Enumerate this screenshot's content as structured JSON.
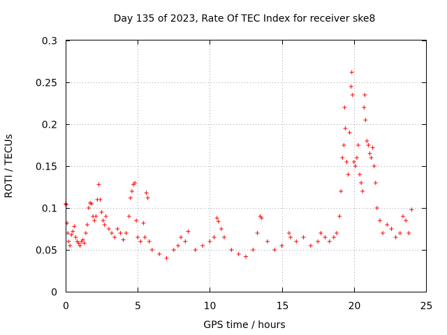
{
  "chart_data": {
    "type": "scatter",
    "title": "Day 135 of 2023, Rate Of TEC Index for receiver ske8",
    "xlabel": "GPS time / hours",
    "ylabel": "ROTI / TECUs",
    "xlim": [
      0,
      25
    ],
    "ylim": [
      0,
      0.3
    ],
    "xticks": [
      0,
      5,
      10,
      15,
      20,
      25
    ],
    "xtick_labels": [
      "0",
      "5",
      "10",
      "15",
      "20",
      "25"
    ],
    "yticks": [
      0,
      0.05,
      0.1,
      0.15,
      0.2,
      0.25,
      0.3
    ],
    "ytick_labels": [
      "0",
      "0.05",
      "0.1",
      "0.15",
      "0.2",
      "0.25",
      "0.3"
    ],
    "grid": true,
    "marker": "+",
    "color": "#ff0000",
    "series": [
      {
        "name": "ROTI",
        "points": [
          [
            0.0,
            0.105
          ],
          [
            0.05,
            0.104
          ],
          [
            0.1,
            0.082
          ],
          [
            0.15,
            0.07
          ],
          [
            0.2,
            0.06
          ],
          [
            0.3,
            0.055
          ],
          [
            0.4,
            0.068
          ],
          [
            0.5,
            0.072
          ],
          [
            0.6,
            0.078
          ],
          [
            0.7,
            0.065
          ],
          [
            0.8,
            0.06
          ],
          [
            0.9,
            0.058
          ],
          [
            1.0,
            0.055
          ],
          [
            1.1,
            0.06
          ],
          [
            1.2,
            0.062
          ],
          [
            1.3,
            0.058
          ],
          [
            1.4,
            0.07
          ],
          [
            1.5,
            0.08
          ],
          [
            1.6,
            0.1
          ],
          [
            1.7,
            0.106
          ],
          [
            1.8,
            0.105
          ],
          [
            1.9,
            0.09
          ],
          [
            2.0,
            0.085
          ],
          [
            2.1,
            0.09
          ],
          [
            2.2,
            0.11
          ],
          [
            2.3,
            0.128
          ],
          [
            2.4,
            0.11
          ],
          [
            2.5,
            0.095
          ],
          [
            2.6,
            0.085
          ],
          [
            2.7,
            0.08
          ],
          [
            2.8,
            0.09
          ],
          [
            3.0,
            0.075
          ],
          [
            3.2,
            0.07
          ],
          [
            3.4,
            0.065
          ],
          [
            3.6,
            0.075
          ],
          [
            3.8,
            0.07
          ],
          [
            4.0,
            0.062
          ],
          [
            4.2,
            0.07
          ],
          [
            4.4,
            0.09
          ],
          [
            4.5,
            0.112
          ],
          [
            4.6,
            0.12
          ],
          [
            4.7,
            0.128
          ],
          [
            4.8,
            0.13
          ],
          [
            4.9,
            0.085
          ],
          [
            5.0,
            0.065
          ],
          [
            5.2,
            0.06
          ],
          [
            5.4,
            0.082
          ],
          [
            5.5,
            0.065
          ],
          [
            5.6,
            0.118
          ],
          [
            5.7,
            0.112
          ],
          [
            5.8,
            0.06
          ],
          [
            6.0,
            0.05
          ],
          [
            6.5,
            0.045
          ],
          [
            7.0,
            0.04
          ],
          [
            7.5,
            0.05
          ],
          [
            7.8,
            0.055
          ],
          [
            8.0,
            0.065
          ],
          [
            8.3,
            0.06
          ],
          [
            8.5,
            0.072
          ],
          [
            9.0,
            0.05
          ],
          [
            9.5,
            0.055
          ],
          [
            10.0,
            0.06
          ],
          [
            10.3,
            0.065
          ],
          [
            10.5,
            0.088
          ],
          [
            10.6,
            0.084
          ],
          [
            10.8,
            0.075
          ],
          [
            11.0,
            0.065
          ],
          [
            11.5,
            0.05
          ],
          [
            12.0,
            0.045
          ],
          [
            12.5,
            0.042
          ],
          [
            13.0,
            0.05
          ],
          [
            13.3,
            0.07
          ],
          [
            13.5,
            0.09
          ],
          [
            13.6,
            0.088
          ],
          [
            14.0,
            0.06
          ],
          [
            14.5,
            0.05
          ],
          [
            15.0,
            0.055
          ],
          [
            15.5,
            0.07
          ],
          [
            15.6,
            0.065
          ],
          [
            16.0,
            0.06
          ],
          [
            16.5,
            0.065
          ],
          [
            17.0,
            0.055
          ],
          [
            17.5,
            0.06
          ],
          [
            17.7,
            0.07
          ],
          [
            18.0,
            0.065
          ],
          [
            18.3,
            0.06
          ],
          [
            18.6,
            0.065
          ],
          [
            18.8,
            0.07
          ],
          [
            19.0,
            0.09
          ],
          [
            19.1,
            0.12
          ],
          [
            19.2,
            0.16
          ],
          [
            19.3,
            0.175
          ],
          [
            19.35,
            0.22
          ],
          [
            19.4,
            0.195
          ],
          [
            19.5,
            0.155
          ],
          [
            19.6,
            0.14
          ],
          [
            19.7,
            0.19
          ],
          [
            19.8,
            0.245
          ],
          [
            19.85,
            0.262
          ],
          [
            19.9,
            0.235
          ],
          [
            20.0,
            0.155
          ],
          [
            20.1,
            0.15
          ],
          [
            20.2,
            0.16
          ],
          [
            20.3,
            0.175
          ],
          [
            20.4,
            0.14
          ],
          [
            20.5,
            0.13
          ],
          [
            20.6,
            0.12
          ],
          [
            20.7,
            0.22
          ],
          [
            20.75,
            0.235
          ],
          [
            20.8,
            0.205
          ],
          [
            20.9,
            0.18
          ],
          [
            21.0,
            0.175
          ],
          [
            21.1,
            0.165
          ],
          [
            21.2,
            0.16
          ],
          [
            21.3,
            0.172
          ],
          [
            21.4,
            0.15
          ],
          [
            21.5,
            0.13
          ],
          [
            21.6,
            0.1
          ],
          [
            21.8,
            0.085
          ],
          [
            22.0,
            0.07
          ],
          [
            22.3,
            0.08
          ],
          [
            22.6,
            0.075
          ],
          [
            22.9,
            0.065
          ],
          [
            23.2,
            0.07
          ],
          [
            23.4,
            0.09
          ],
          [
            23.6,
            0.085
          ],
          [
            23.8,
            0.07
          ],
          [
            24.0,
            0.098
          ]
        ]
      }
    ]
  }
}
